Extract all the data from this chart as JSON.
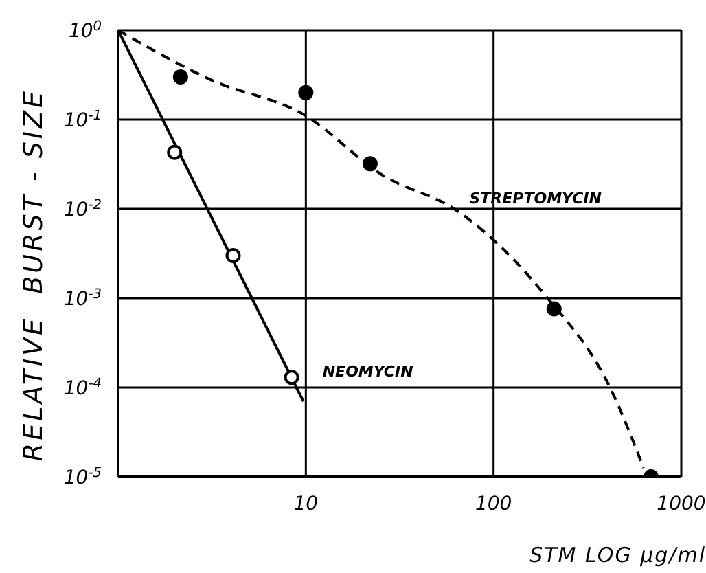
{
  "chart_data": {
    "type": "scatter",
    "xlabel": "STM LOG µg/ml",
    "ylabel": "RELATIVE  BURST - SIZE",
    "log": "xy",
    "grid": true,
    "legend": false,
    "xlim": [
      1,
      1000
    ],
    "xticks": [
      10,
      100,
      1000
    ],
    "ylim": [
      1e-05,
      1
    ],
    "yticks": [
      {
        "value": 1,
        "label": "10$^{0}$"
      },
      {
        "value": 0.1,
        "label": "10$^{-1}$"
      },
      {
        "value": 0.01,
        "label": "10$^{-2}$"
      },
      {
        "value": 0.001,
        "label": "10$^{-3}$"
      },
      {
        "value": 0.0001,
        "label": "10$^{-4}$"
      },
      {
        "value": 1e-05,
        "label": "10$^{-5}$"
      }
    ],
    "series": [
      {
        "type": "line",
        "name": "STREPTOMYCIN",
        "color": "#000000",
        "line_style": "dashed",
        "marker": "none",
        "x": [
          1,
          3.1,
          10,
          25.5,
          65,
          187,
          417,
          630
        ],
        "values": [
          1,
          0.28,
          0.11,
          0.024,
          0.0093,
          0.0011,
          0.0001,
          1.26e-05
        ]
      },
      {
        "type": "line",
        "name": "NEOMYCIN",
        "color": "#000000",
        "line_style": "solid",
        "marker": "none",
        "x": [
          1,
          9.7
        ],
        "values": [
          1,
          7e-05
        ]
      },
      {
        "color": "#000000",
        "marker": "circle",
        "x": [
          2.15,
          10,
          22,
          210,
          690
        ],
        "values": [
          0.3,
          0.2,
          0.032,
          0.00076,
          1e-05
        ]
      },
      {
        "color": "#ffffff",
        "marker": "circle",
        "x": [
          2,
          4.1,
          8.4
        ],
        "values": [
          0.043,
          0.003,
          0.00013
        ]
      }
    ]
  }
}
